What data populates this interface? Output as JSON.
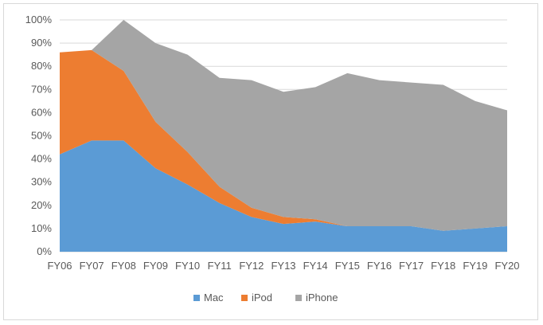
{
  "chart_data": {
    "type": "area",
    "stacked": true,
    "categories": [
      "FY06",
      "FY07",
      "FY08",
      "FY09",
      "FY10",
      "FY11",
      "FY12",
      "FY13",
      "FY14",
      "FY15",
      "FY16",
      "FY17",
      "FY18",
      "FY19",
      "FY20"
    ],
    "series": [
      {
        "name": "Mac",
        "color": "#5b9bd5",
        "values": [
          42,
          48,
          48,
          36,
          29,
          21,
          15,
          12,
          13,
          11,
          11,
          11,
          9,
          10,
          11
        ]
      },
      {
        "name": "iPod",
        "color": "#ed7d31",
        "values": [
          44,
          39,
          30,
          20,
          14,
          7,
          4,
          3,
          1,
          0,
          0,
          0,
          0,
          0,
          0
        ]
      },
      {
        "name": "iPhone",
        "color": "#a5a5a5",
        "values": [
          0,
          0,
          22,
          34,
          42,
          47,
          55,
          54,
          57,
          66,
          63,
          62,
          63,
          55,
          50
        ]
      }
    ],
    "yticks": [
      "0%",
      "10%",
      "20%",
      "30%",
      "40%",
      "50%",
      "60%",
      "70%",
      "80%",
      "90%",
      "100%"
    ],
    "ylim": [
      0,
      100
    ],
    "grid": true,
    "legend": "bottom"
  }
}
